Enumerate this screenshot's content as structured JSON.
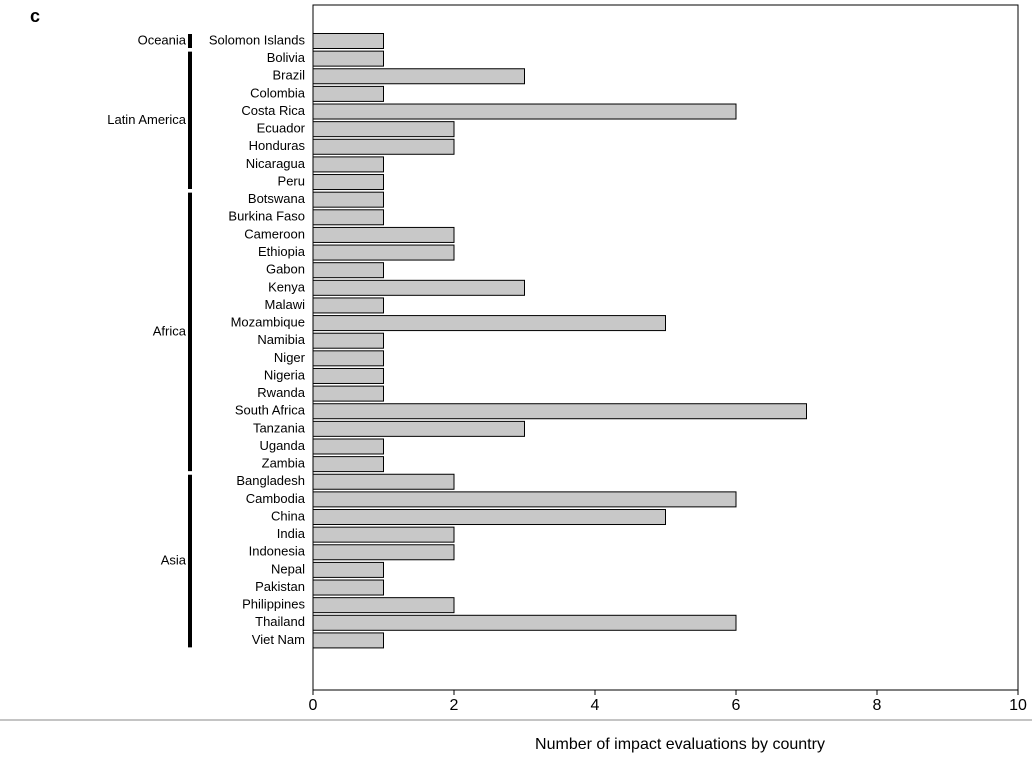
{
  "chart_data": {
    "type": "bar",
    "panel_label": "c",
    "x_label": "Number of impact evaluations by country",
    "color": "#c8c8c8",
    "xlim": [
      0,
      10
    ],
    "xticks": [
      0,
      2,
      4,
      6,
      8,
      10
    ],
    "groups": [
      {
        "name": "Oceania",
        "categories": [
          "Solomon Islands"
        ],
        "values": [
          1
        ]
      },
      {
        "name": "Latin America",
        "categories": [
          "Bolivia",
          "Brazil",
          "Colombia",
          "Costa Rica",
          "Ecuador",
          "Honduras",
          "Nicaragua",
          "Peru"
        ],
        "values": [
          1,
          3,
          1,
          6,
          2,
          2,
          1,
          1
        ]
      },
      {
        "name": "Africa",
        "categories": [
          "Botswana",
          "Burkina Faso",
          "Cameroon",
          "Ethiopia",
          "Gabon",
          "Kenya",
          "Malawi",
          "Mozambique",
          "Namibia",
          "Niger",
          "Nigeria",
          "Rwanda",
          "South Africa",
          "Tanzania",
          "Uganda",
          "Zambia"
        ],
        "values": [
          1,
          1,
          2,
          2,
          1,
          3,
          1,
          5,
          1,
          1,
          1,
          1,
          7,
          3,
          1,
          1
        ]
      },
      {
        "name": "Asia",
        "categories": [
          "Bangladesh",
          "Cambodia",
          "China",
          "India",
          "Indonesia",
          "Nepal",
          "Pakistan",
          "Philippines",
          "Thailand",
          "Viet Nam"
        ],
        "values": [
          2,
          6,
          5,
          2,
          2,
          1,
          1,
          2,
          6,
          1
        ]
      }
    ]
  }
}
